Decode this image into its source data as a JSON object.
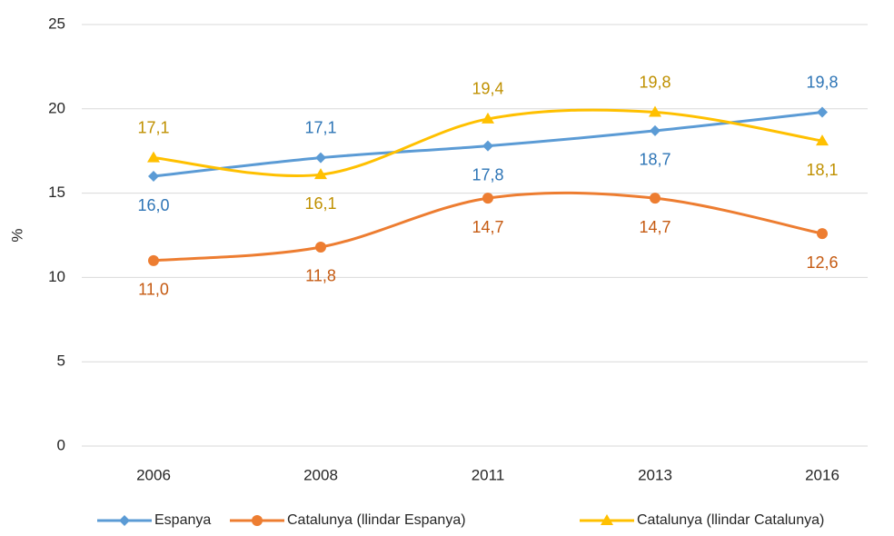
{
  "chart_data": {
    "type": "line",
    "y_label": "%",
    "categories": [
      "2006",
      "2008",
      "2011",
      "2013",
      "2016"
    ],
    "series": [
      {
        "name": "Espanya",
        "color": "#5b9bd5",
        "values": [
          16.0,
          17.1,
          17.8,
          18.7,
          19.8
        ],
        "value_labels": [
          "16,0",
          "17,1",
          "17,8",
          "18,7",
          "19,8"
        ]
      },
      {
        "name": "Catalunya (llindar Espanya)",
        "color": "#ed7d31",
        "values": [
          11.0,
          11.8,
          14.7,
          14.7,
          12.6
        ],
        "value_labels": [
          "11,0",
          "11,8",
          "14,7",
          "14,7",
          "12,6"
        ]
      },
      {
        "name": "Catalunya (llindar Catalunya)",
        "color": "#ffc000",
        "values": [
          17.1,
          16.1,
          19.4,
          19.8,
          18.1
        ],
        "value_labels": [
          "17,1",
          "16,1",
          "19,4",
          "19,8",
          "18,1"
        ]
      }
    ],
    "ylim": [
      0,
      25
    ],
    "yticks": [
      0,
      5,
      10,
      15,
      20,
      25
    ],
    "grid": true,
    "legend": "bottom"
  }
}
